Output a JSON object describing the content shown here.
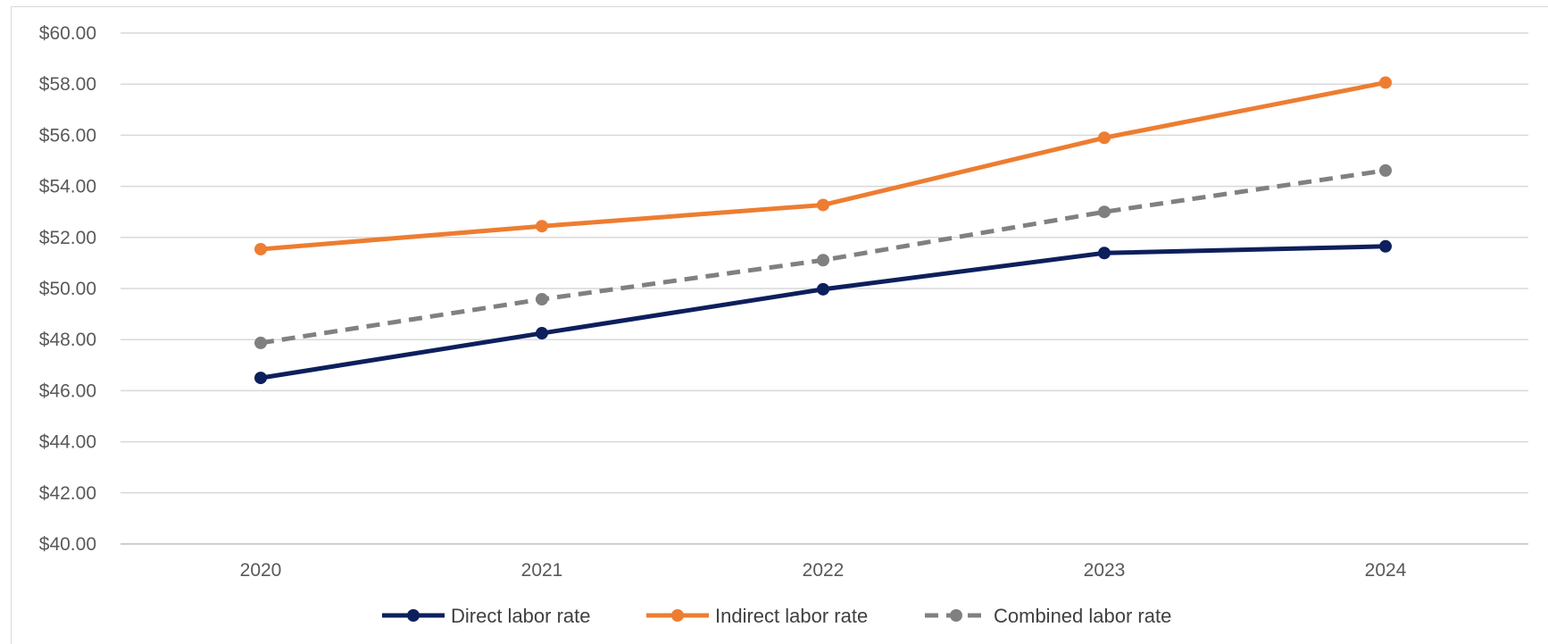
{
  "chart_data": {
    "type": "line",
    "title": "",
    "xlabel": "",
    "ylabel": "",
    "categories": [
      "2020",
      "2021",
      "2022",
      "2023",
      "2024"
    ],
    "ylim": [
      40,
      60
    ],
    "y_ticks": [
      40,
      42,
      44,
      46,
      48,
      50,
      52,
      54,
      56,
      58,
      60
    ],
    "y_tick_labels": [
      "$40.00",
      "$42.00",
      "$44.00",
      "$46.00",
      "$48.00",
      "$50.00",
      "$52.00",
      "$54.00",
      "$56.00",
      "$58.00",
      "$60.00"
    ],
    "grid": true,
    "legend_position": "bottom",
    "series": [
      {
        "name": "Direct labor rate",
        "values": [
          46.5,
          48.25,
          49.97,
          51.39,
          51.65
        ],
        "color": "#0d1f5c",
        "dashed": false
      },
      {
        "name": "Indirect labor rate",
        "values": [
          51.54,
          52.44,
          53.27,
          55.9,
          58.06
        ],
        "color": "#ed7d31",
        "dashed": false
      },
      {
        "name": "Combined labor rate",
        "values": [
          47.87,
          49.58,
          51.11,
          53.0,
          54.62
        ],
        "color": "#808080",
        "dashed": true
      }
    ]
  }
}
